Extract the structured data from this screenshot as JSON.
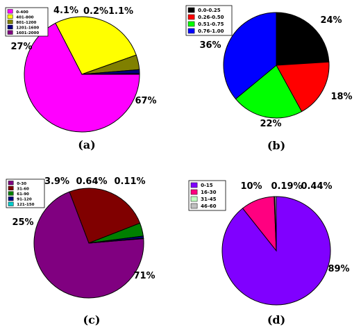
{
  "chart_data": [
    {
      "type": "pie",
      "panel_label": "(a)",
      "slices": [
        {
          "name": "0-400",
          "value": 67,
          "label": "67%",
          "color": "#FF00FF"
        },
        {
          "name": "401-800",
          "value": 27,
          "label": "27%",
          "color": "#FFFF00"
        },
        {
          "name": "801-1200",
          "value": 4.1,
          "label": "4.1%",
          "color": "#808000"
        },
        {
          "name": "1201-1600",
          "value": 1.1,
          "label": "1.1%",
          "color": "#000080"
        },
        {
          "name": "1601-2000",
          "value": 0.2,
          "label": "0.2%",
          "color": "#800080"
        }
      ],
      "legend_position": "top-left"
    },
    {
      "type": "pie",
      "panel_label": "(b)",
      "slices": [
        {
          "name": "0.0-0.25",
          "value": 24,
          "label": "24%",
          "color": "#000000"
        },
        {
          "name": "0.26-0.50",
          "value": 18,
          "label": "18%",
          "color": "#FF0000"
        },
        {
          "name": "0.51-0.75",
          "value": 22,
          "label": "22%",
          "color": "#00FF00"
        },
        {
          "name": "0.76-1.00",
          "value": 36,
          "label": "36%",
          "color": "#0000FF"
        }
      ],
      "legend_position": "top-left"
    },
    {
      "type": "pie",
      "panel_label": "(c)",
      "slices": [
        {
          "name": "0-30",
          "value": 71,
          "label": "71%",
          "color": "#800080"
        },
        {
          "name": "31-60",
          "value": 25,
          "label": "25%",
          "color": "#800000"
        },
        {
          "name": "61-90",
          "value": 3.9,
          "label": "3.9%",
          "color": "#008000"
        },
        {
          "name": "91-120",
          "value": 0.64,
          "label": "0.64%",
          "color": "#000080"
        },
        {
          "name": "121-150",
          "value": 0.11,
          "label": "0.11%",
          "color": "#00CCCC"
        }
      ],
      "legend_position": "top-left"
    },
    {
      "type": "pie",
      "panel_label": "(d)",
      "slices": [
        {
          "name": "0-15",
          "value": 89,
          "label": "89%",
          "color": "#8000FF"
        },
        {
          "name": "16-30",
          "value": 10,
          "label": "10%",
          "color": "#FF0080"
        },
        {
          "name": "31-45",
          "value": 0.19,
          "label": "0.19%",
          "color": "#C0FFC0"
        },
        {
          "name": "46-60",
          "value": 0.44,
          "label": "0.44%",
          "color": "#C0C0C0"
        }
      ],
      "legend_position": "top-left"
    }
  ]
}
